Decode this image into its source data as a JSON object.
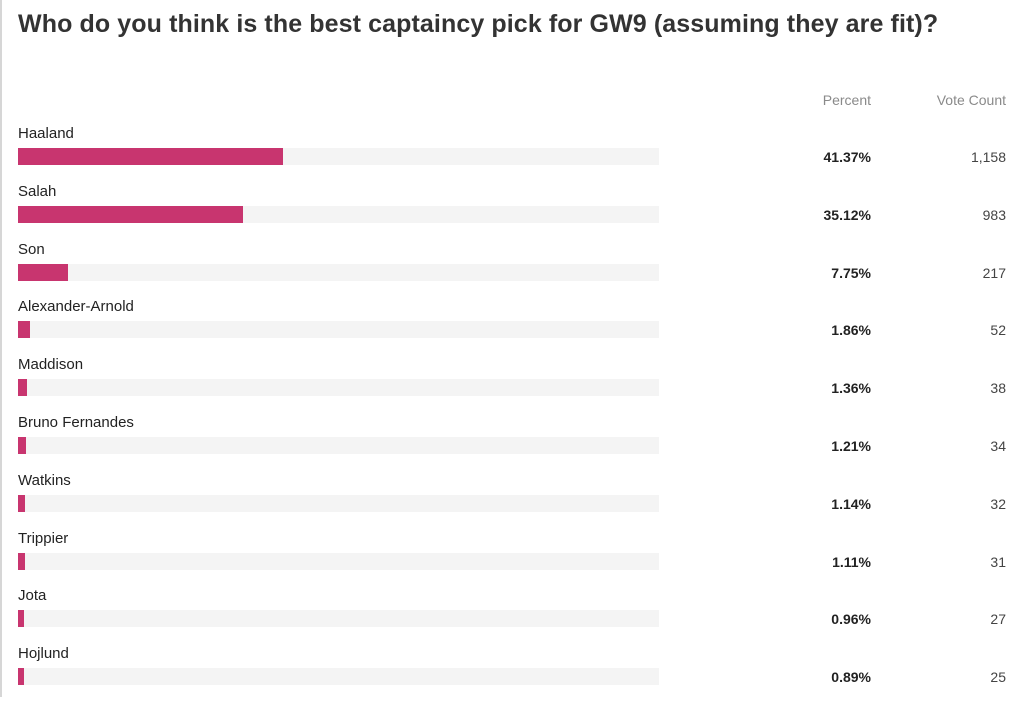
{
  "poll": {
    "question": "Who do you think is the best captaincy pick for GW9 (assuming they are fit)?",
    "columns": {
      "percent": "Percent",
      "votes": "Vote Count"
    }
  },
  "colors": {
    "bar_fill": "#c8356f",
    "bar_track": "#f4f4f4"
  },
  "chart_data": {
    "type": "bar",
    "orientation": "horizontal",
    "title": "Who do you think is the best captaincy pick for GW9 (assuming they are fit)?",
    "categories": [
      "Haaland",
      "Salah",
      "Son",
      "Alexander-Arnold",
      "Maddison",
      "Bruno Fernandes",
      "Watkins",
      "Trippier",
      "Jota",
      "Hojlund"
    ],
    "values": [
      41.37,
      35.12,
      7.75,
      1.86,
      1.36,
      1.21,
      1.14,
      1.11,
      0.96,
      0.89
    ],
    "percent_labels": [
      "41.37%",
      "35.12%",
      "7.75%",
      "1.86%",
      "1.36%",
      "1.21%",
      "1.14%",
      "1.11%",
      "0.96%",
      "0.89%"
    ],
    "vote_counts": [
      "1,158",
      "983",
      "217",
      "52",
      "38",
      "34",
      "32",
      "31",
      "27",
      "25"
    ],
    "xlim": [
      0,
      100
    ],
    "grid": false,
    "legend": "none"
  }
}
